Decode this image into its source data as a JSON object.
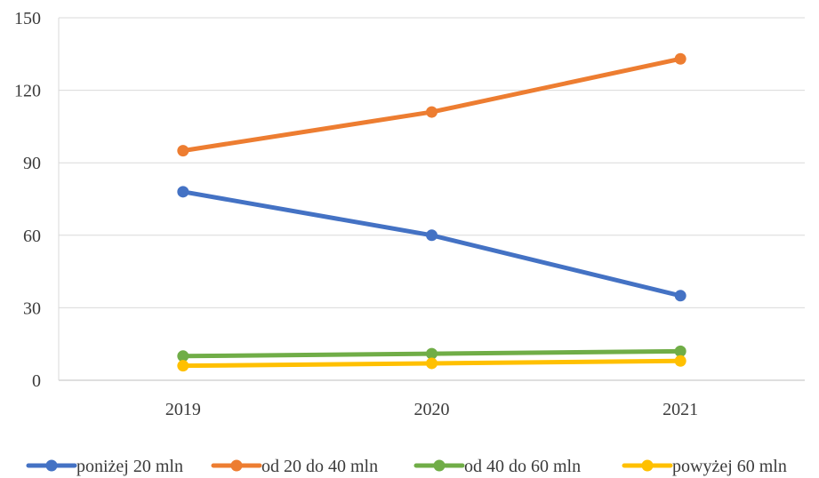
{
  "chart_data": {
    "type": "line",
    "title": "",
    "xlabel": "",
    "ylabel": "",
    "categories": [
      "2019",
      "2020",
      "2021"
    ],
    "ylim": [
      0,
      150
    ],
    "yticks": [
      0,
      30,
      60,
      90,
      120,
      150
    ],
    "grid": true,
    "legend_position": "bottom",
    "series": [
      {
        "name": "poniżej 20 mln",
        "color": "#4472C4",
        "values": [
          78,
          60,
          35
        ]
      },
      {
        "name": "od 20 do 40 mln",
        "color": "#ED7D31",
        "values": [
          95,
          111,
          133
        ]
      },
      {
        "name": "od 40 do 60 mln",
        "color": "#70AD47",
        "values": [
          10,
          11,
          12
        ]
      },
      {
        "name": "powyżej 60 mln",
        "color": "#FFC000",
        "values": [
          6,
          7,
          8
        ]
      }
    ]
  }
}
